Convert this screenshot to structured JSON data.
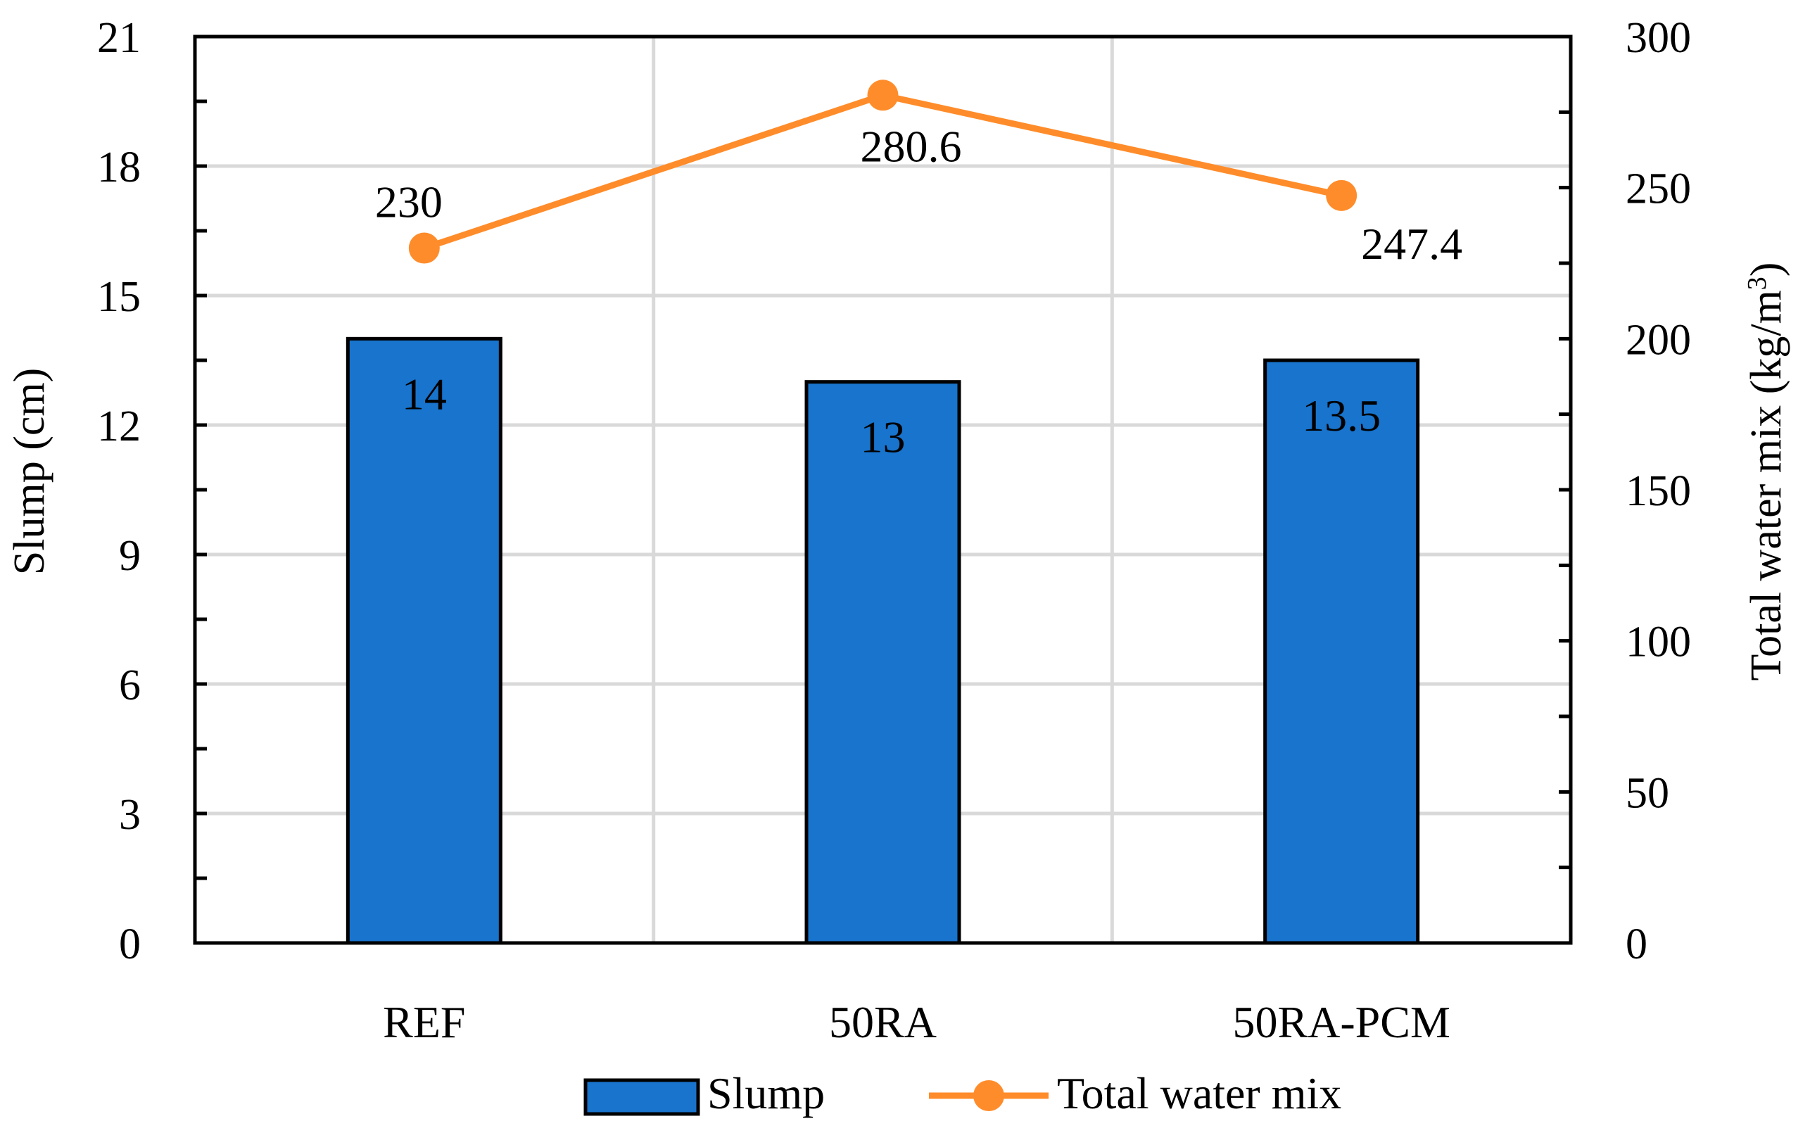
{
  "chart_data": {
    "type": "bar+line",
    "categories": [
      "REF",
      "50RA",
      "50RA-PCM"
    ],
    "series": [
      {
        "name": "Slump",
        "kind": "bar",
        "axis": "left",
        "values": [
          14,
          13,
          13.5
        ],
        "labels": [
          "14",
          "13",
          "13.5"
        ],
        "color": "#1874cd"
      },
      {
        "name": "Total water mix",
        "kind": "line",
        "axis": "right",
        "values": [
          230,
          280.6,
          247.4
        ],
        "labels": [
          "230",
          "280.6",
          "247.4"
        ],
        "color": "#ff8c2a"
      }
    ],
    "ylabel_left": "Slump (cm)",
    "ylabel_right_main": "Total water mix (kg/m",
    "ylabel_right_sup": "3",
    "ylabel_right_close": ")",
    "ylim_left": [
      0,
      21
    ],
    "yticks_left": [
      "0",
      "3",
      "6",
      "9",
      "12",
      "15",
      "18",
      "21"
    ],
    "ylim_right": [
      0,
      300
    ],
    "yticks_right": [
      "0",
      "50",
      "100",
      "150",
      "200",
      "250",
      "300"
    ],
    "legend": {
      "position": "bottom",
      "bar_label": "Slump",
      "line_label": "Total water mix"
    },
    "grid": true
  }
}
